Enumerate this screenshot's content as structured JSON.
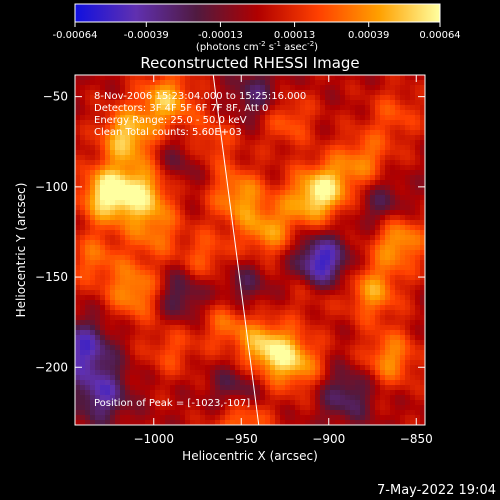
{
  "colorbar": {
    "tick_labels": [
      "-0.00064",
      "-0.00039",
      "-0.00013",
      "0.00013",
      "0.00039",
      "0.00064"
    ],
    "tick_values": [
      -0.00064,
      -0.00039,
      -0.00013,
      0.00013,
      0.00039,
      0.00064
    ],
    "range": [
      -0.00064,
      0.00064
    ],
    "units_main": "(photons cm",
    "units_sup1": "-2",
    "units_mid": " s",
    "units_sup2": "-1",
    "units_end": " asec",
    "units_sup3": "-2",
    "units_close": ")",
    "colors": [
      "#1010e0",
      "#6030b0",
      "#501a40",
      "#b00000",
      "#ff4000",
      "#ffa000",
      "#ffffa0"
    ]
  },
  "chart_data": {
    "type": "heatmap",
    "title": "Reconstructed RHESSI Image",
    "xlabel": "Heliocentric X (arcsec)",
    "ylabel": "Heliocentric Y (arcsec)",
    "xlim": [
      -1045,
      -845
    ],
    "ylim": [
      -232,
      -38
    ],
    "xticks": [
      -1000,
      -950,
      -900,
      -850
    ],
    "yticks": [
      -50,
      -100,
      -150,
      -200
    ],
    "xtick_labels": [
      "−1000",
      "−950",
      "−900",
      "−850"
    ],
    "ytick_labels": [
      "−50",
      "−100",
      "−150",
      "−200"
    ],
    "annotations": [
      "8-Nov-2006 15:23:04.000 to 15:25:16.000",
      "Detectors: 3F 4F 5F 6F 7F 8F, Att 0",
      "Energy Range: 25.0 - 50.0 keV",
      "Clean     Total counts: 5.60E+03"
    ],
    "peak_label": "Position of Peak = [-1023,-107]",
    "peak_position": [
      -1023,
      -107
    ],
    "limb_line": [
      [
        -966,
        -38
      ],
      [
        -940,
        -232
      ]
    ],
    "hot_spots": [
      {
        "x": -1026,
        "y": -104,
        "value": 0.00064
      },
      {
        "x": -1015,
        "y": -72,
        "value": 0.00052
      },
      {
        "x": -993,
        "y": -52,
        "value": 0.00047
      },
      {
        "x": -1005,
        "y": -103,
        "value": 0.00045
      },
      {
        "x": -1034,
        "y": -140,
        "value": 0.00028
      },
      {
        "x": -1010,
        "y": -158,
        "value": 0.00042
      },
      {
        "x": -968,
        "y": -75,
        "value": 0.00025
      },
      {
        "x": -952,
        "y": -105,
        "value": 0.0004
      },
      {
        "x": -935,
        "y": -125,
        "value": 0.00038
      },
      {
        "x": -912,
        "y": -108,
        "value": 0.00036
      },
      {
        "x": -900,
        "y": -100,
        "value": 0.00042
      },
      {
        "x": -880,
        "y": -85,
        "value": 0.00032
      },
      {
        "x": -860,
        "y": -130,
        "value": 0.00045
      },
      {
        "x": -875,
        "y": -158,
        "value": 0.0004
      },
      {
        "x": -865,
        "y": -195,
        "value": 0.00038
      },
      {
        "x": -935,
        "y": -190,
        "value": 0.00052
      },
      {
        "x": -918,
        "y": -198,
        "value": 0.0004
      },
      {
        "x": -958,
        "y": -175,
        "value": 0.0003
      },
      {
        "x": -950,
        "y": -228,
        "value": 0.00044
      },
      {
        "x": -970,
        "y": -140,
        "value": 0.00028
      },
      {
        "x": -990,
        "y": -190,
        "value": 0.00022
      },
      {
        "x": -910,
        "y": -155,
        "value": 0.00024
      },
      {
        "x": -925,
        "y": -62,
        "value": 0.0003
      },
      {
        "x": -862,
        "y": -60,
        "value": 0.00022
      },
      {
        "x": -1000,
        "y": -125,
        "value": 0.0003
      },
      {
        "x": -905,
        "y": -143,
        "value": -0.00064
      },
      {
        "x": -1040,
        "y": -190,
        "value": -0.00045
      },
      {
        "x": -1030,
        "y": -215,
        "value": -0.0004
      },
      {
        "x": -952,
        "y": -215,
        "value": -0.00035
      },
      {
        "x": -985,
        "y": -160,
        "value": -0.0003
      },
      {
        "x": -940,
        "y": -50,
        "value": -0.0003
      },
      {
        "x": -950,
        "y": -155,
        "value": -0.00025
      },
      {
        "x": -890,
        "y": -215,
        "value": -0.0003
      },
      {
        "x": -870,
        "y": -110,
        "value": -0.00025
      },
      {
        "x": -985,
        "y": -85,
        "value": -0.0002
      }
    ]
  },
  "footer": {
    "timestamp": "7-May-2022 19:04"
  }
}
